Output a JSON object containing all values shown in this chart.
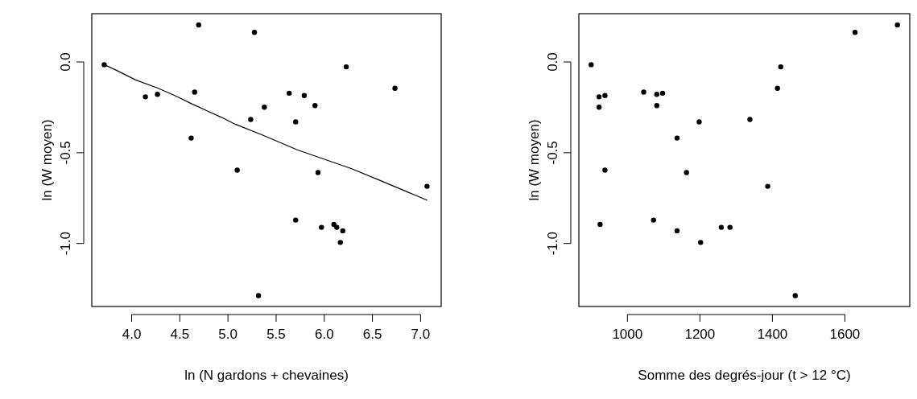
{
  "chart_data": [
    {
      "type": "scatter",
      "xlabel": "ln (N gardons + chevaines)",
      "ylabel": "ln (W moyen)",
      "xlim": [
        3.586,
        7.214
      ],
      "ylim": [
        -1.347,
        0.266
      ],
      "xticks": [
        {
          "value": 4,
          "label": "4.0"
        },
        {
          "value": 4.5,
          "label": "4.5"
        },
        {
          "value": 5,
          "label": "5.0"
        },
        {
          "value": 5.5,
          "label": "5.5"
        },
        {
          "value": 6,
          "label": "6.0"
        },
        {
          "value": 6.5,
          "label": "6.5"
        },
        {
          "value": 7,
          "label": "7.0"
        }
      ],
      "yticks": [
        {
          "value": -1,
          "label": "-1.0"
        },
        {
          "value": -0.5,
          "label": "-0.5"
        },
        {
          "value": 0,
          "label": "0.0"
        }
      ],
      "grid": false,
      "marker": "circle",
      "series": [
        {
          "color": "#000000",
          "x": [
            3.715,
            4.143,
            4.268,
            4.654,
            4.696,
            4.618,
            5.096,
            5.236,
            5.275,
            5.378,
            5.317,
            5.636,
            5.703,
            5.703,
            5.792,
            5.904,
            5.935,
            5.971,
            6.1,
            6.13,
            6.192,
            6.167,
            6.228,
            6.734,
            7.067
          ],
          "values": [
            -0.015,
            -0.192,
            -0.178,
            -0.166,
            0.204,
            -0.419,
            -0.596,
            -0.317,
            0.163,
            -0.249,
            -1.287,
            -0.172,
            -0.33,
            -0.871,
            -0.185,
            -0.24,
            -0.609,
            -0.911,
            -0.895,
            -0.911,
            -0.93,
            -0.994,
            -0.027,
            -0.145,
            -0.685
          ]
        },
        {
          "type": "line",
          "color": "#000000",
          "line_style": "solid",
          "marker": "none",
          "x": [
            3.715,
            3.846,
            4.042,
            4.266,
            4.461,
            4.629,
            4.937,
            5.076,
            5.356,
            5.719,
            6.279,
            6.586,
            7.07
          ],
          "values": [
            -0.015,
            -0.047,
            -0.099,
            -0.143,
            -0.188,
            -0.232,
            -0.306,
            -0.343,
            -0.402,
            -0.484,
            -0.587,
            -0.654,
            -0.762
          ]
        }
      ]
    },
    {
      "type": "scatter",
      "xlabel": "Somme des degrés-jour (t > 12 °C)",
      "ylabel": "ln (W moyen)",
      "xlim": [
        866,
        1779
      ],
      "ylim": [
        -1.347,
        0.266
      ],
      "xticks": [
        1000,
        1200,
        1400,
        1600
      ],
      "yticks": [
        {
          "value": -1,
          "label": "-1.0"
        },
        {
          "value": -0.5,
          "label": "-0.5"
        },
        {
          "value": 0,
          "label": "0.0"
        }
      ],
      "grid": false,
      "marker": "circle",
      "series": [
        {
          "color": "#000000",
          "x": [
            899.9,
            921.7,
            938,
            921.7,
            938,
            924.6,
            1045,
            1081,
            1097,
            1081,
            1072,
            1137,
            1198,
            1137,
            1163,
            1202,
            1259,
            1283,
            1338,
            1387,
            1414,
            1423,
            1463,
            1628,
            1745
          ],
          "values": [
            -0.015,
            -0.192,
            -0.185,
            -0.249,
            -0.596,
            -0.895,
            -0.166,
            -0.178,
            -0.172,
            -0.24,
            -0.871,
            -0.419,
            -0.33,
            -0.93,
            -0.609,
            -0.994,
            -0.911,
            -0.911,
            -0.317,
            -0.685,
            -0.145,
            -0.027,
            -1.287,
            0.163,
            0.204
          ]
        }
      ]
    }
  ]
}
